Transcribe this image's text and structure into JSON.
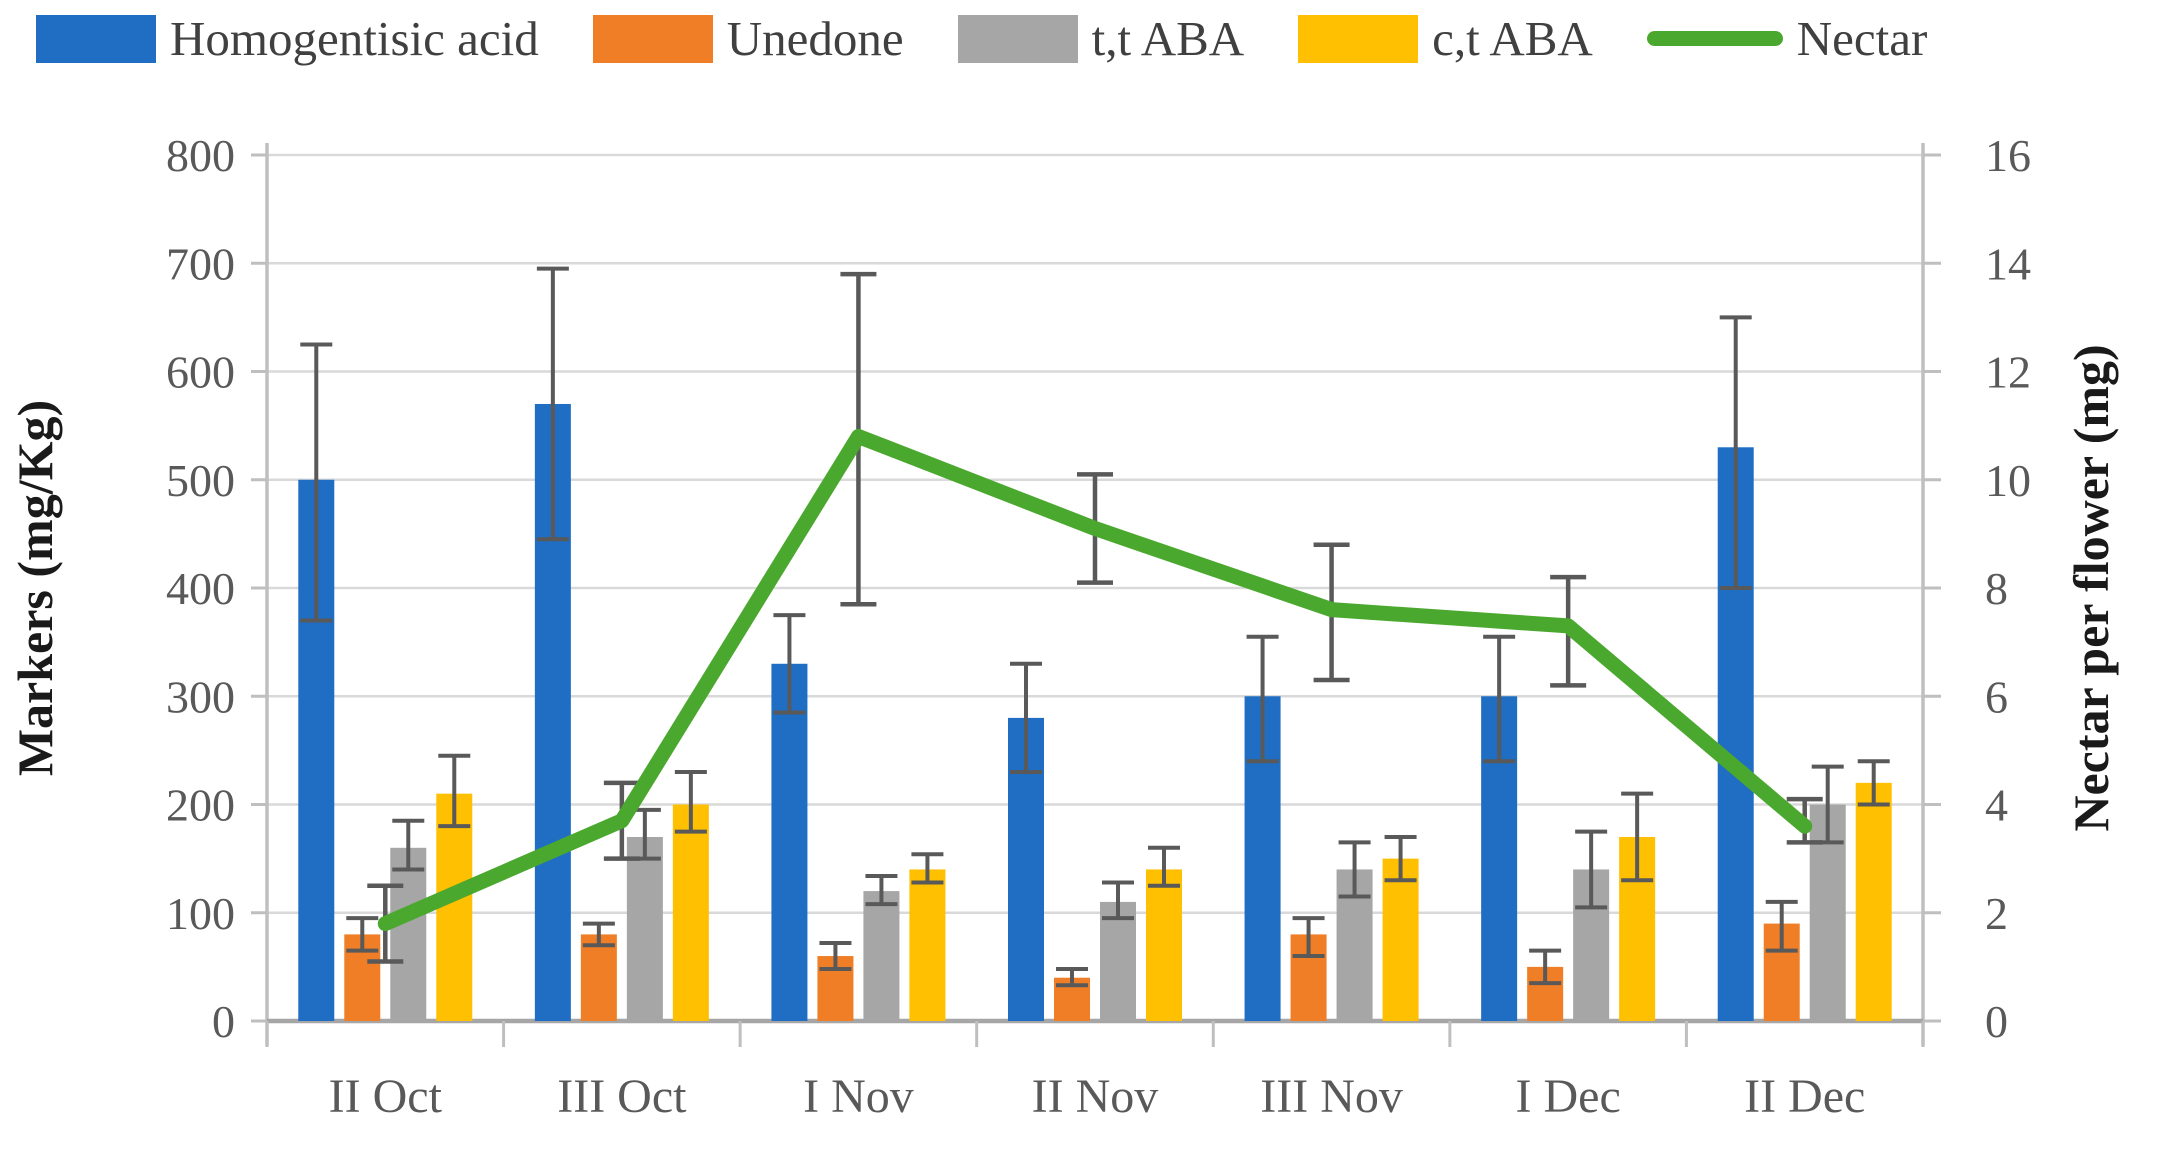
{
  "legend": [
    {
      "label": "Homogentisic acid",
      "color": "#1F6EC3",
      "type": "box"
    },
    {
      "label": "Unedone",
      "color": "#F07E26",
      "type": "box"
    },
    {
      "label": "t,t ABA",
      "color": "#A6A6A6",
      "type": "box"
    },
    {
      "label": "c,t ABA",
      "color": "#FFC001",
      "type": "box"
    },
    {
      "label": "Nectar",
      "color": "#4BA82E",
      "type": "line"
    }
  ],
  "chart_data": {
    "type": "bar+line",
    "categories": [
      "II Oct",
      "III Oct",
      "I Nov",
      "II Nov",
      "III Nov",
      "I Dec",
      "II Dec"
    ],
    "left_axis": {
      "label": "Markers (mg/Kg)",
      "min": 0,
      "max": 800,
      "step": 100,
      "tick_labels": [
        "0",
        "100",
        "200",
        "300",
        "400",
        "500",
        "600",
        "700",
        "800"
      ]
    },
    "right_axis": {
      "label": "Nectar per flower (mg)",
      "min": 0,
      "max": 16,
      "step": 2,
      "tick_labels": [
        "0",
        "2",
        "4",
        "6",
        "8",
        "10",
        "12",
        "14",
        "16"
      ]
    },
    "grid": true,
    "legend_position": "top",
    "series": [
      {
        "name": "Homogentisic acid",
        "type": "bar",
        "axis": "left",
        "color": "#1F6EC3",
        "values": [
          500,
          570,
          330,
          280,
          300,
          300,
          530
        ],
        "err_low": [
          370,
          445,
          285,
          230,
          240,
          240,
          400
        ],
        "err_high": [
          625,
          695,
          375,
          330,
          355,
          355,
          650
        ]
      },
      {
        "name": "Unedone",
        "type": "bar",
        "axis": "left",
        "color": "#F07E26",
        "values": [
          80,
          80,
          60,
          40,
          80,
          50,
          90
        ],
        "err_low": [
          65,
          70,
          48,
          33,
          60,
          35,
          65
        ],
        "err_high": [
          95,
          90,
          72,
          48,
          95,
          65,
          110
        ]
      },
      {
        "name": "t,t ABA",
        "type": "bar",
        "axis": "left",
        "color": "#A6A6A6",
        "values": [
          160,
          170,
          120,
          110,
          140,
          140,
          200
        ],
        "err_low": [
          140,
          150,
          108,
          95,
          115,
          105,
          165
        ],
        "err_high": [
          185,
          195,
          134,
          128,
          165,
          175,
          235
        ]
      },
      {
        "name": "c,t ABA",
        "type": "bar",
        "axis": "left",
        "color": "#FFC001",
        "values": [
          210,
          200,
          140,
          140,
          150,
          170,
          220
        ],
        "err_low": [
          180,
          175,
          128,
          125,
          130,
          130,
          200
        ],
        "err_high": [
          245,
          230,
          154,
          160,
          170,
          210,
          240
        ]
      },
      {
        "name": "Nectar",
        "type": "line",
        "axis": "right",
        "color": "#4BA82E",
        "values": [
          1.8,
          3.7,
          10.8,
          9.1,
          7.6,
          7.3,
          3.6
        ],
        "err_low": [
          1.1,
          3.0,
          7.7,
          8.1,
          6.3,
          6.2,
          3.3
        ],
        "err_high": [
          2.5,
          4.4,
          13.8,
          10.1,
          8.8,
          8.2,
          4.1
        ]
      }
    ],
    "colors": {
      "error_bar": "#595959",
      "gridline": "#D9D9D9",
      "axis_line": "#A6A6A6",
      "tick_line": "#BFBFBF",
      "tick_text": "#595959",
      "title_text": "#1a1a1a"
    }
  }
}
